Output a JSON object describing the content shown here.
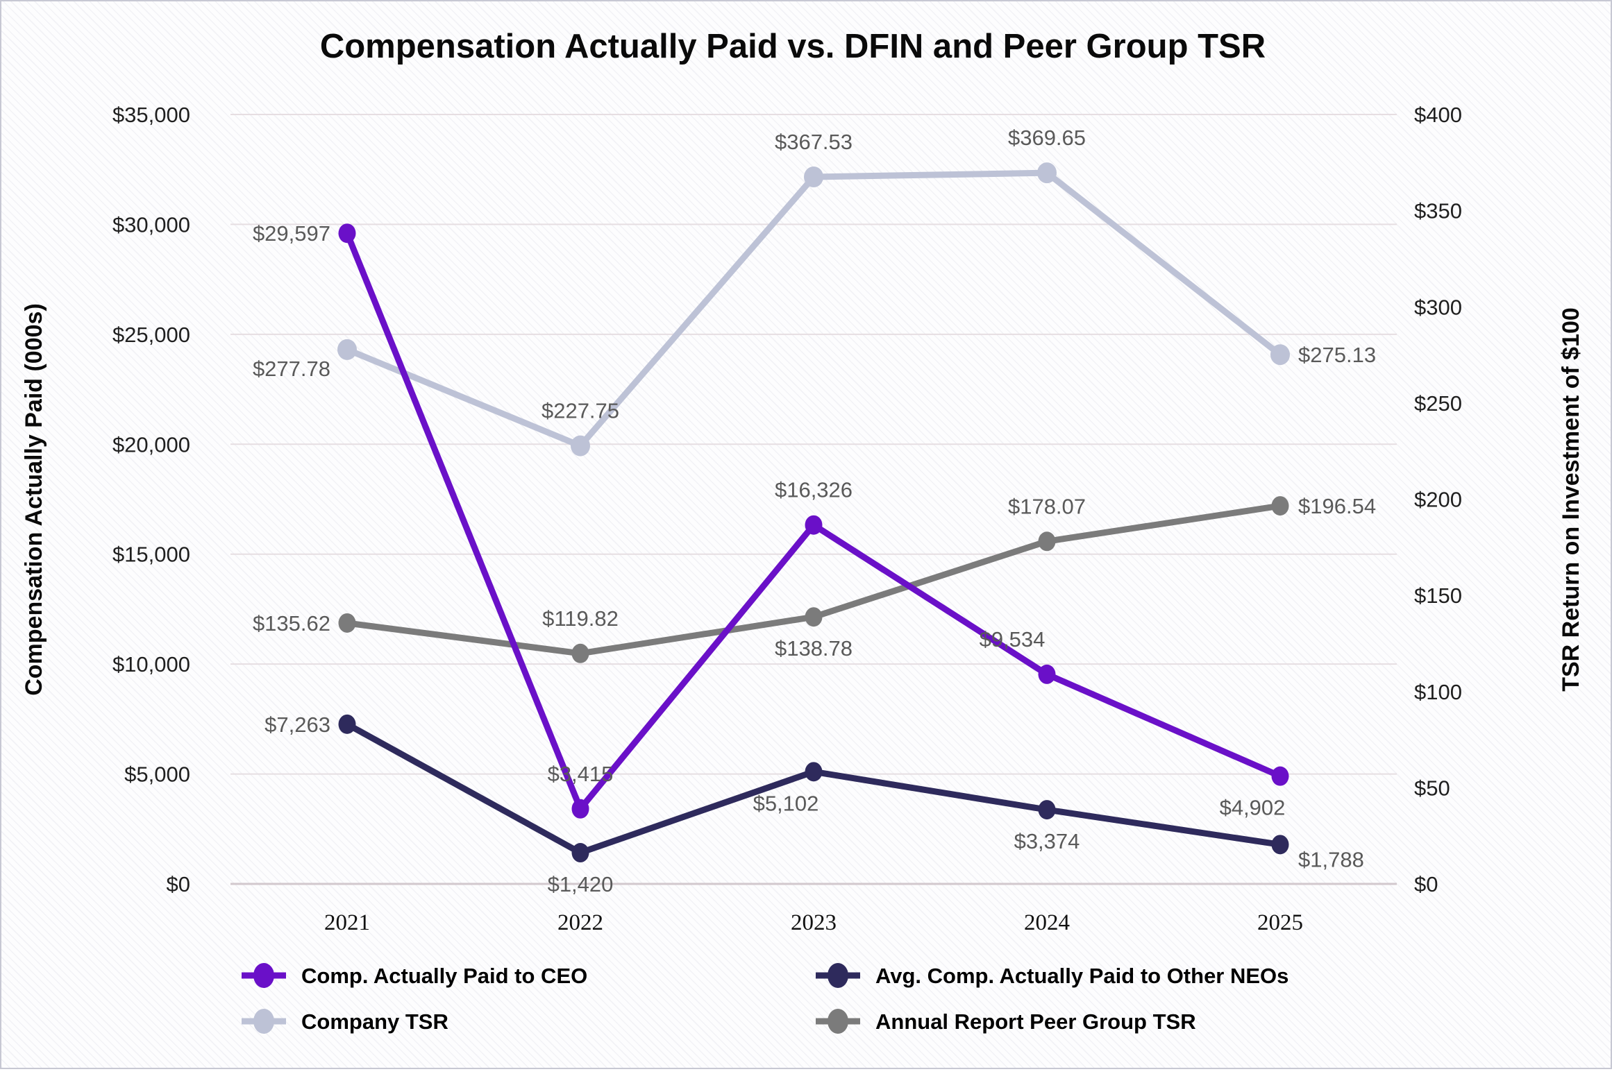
{
  "title": "Compensation Actually Paid vs. DFIN and Peer Group TSR",
  "chart_data": {
    "type": "line",
    "categories": [
      "2021",
      "2022",
      "2023",
      "2024",
      "2025"
    ],
    "series": [
      {
        "id": "ceo",
        "name": "Comp. Actually Paid to CEO",
        "axis": "left",
        "color": "#6a10c8",
        "values": [
          29597,
          3415,
          16326,
          9534,
          4902
        ],
        "point_labels": [
          "$29,597",
          "$3,415",
          "$16,326",
          "$9,534",
          "$4,902"
        ],
        "label_pos": [
          "left",
          "above",
          "above",
          "above-left",
          "below-left"
        ]
      },
      {
        "id": "neo",
        "name": "Avg. Comp. Actually Paid to Other NEOs",
        "axis": "left",
        "color": "#2e2a5c",
        "values": [
          7263,
          1420,
          5102,
          3374,
          1788
        ],
        "point_labels": [
          "$7,263",
          "$1,420",
          "$5,102",
          "$3,374",
          "$1,788"
        ],
        "label_pos": [
          "left",
          "below",
          "below-left",
          "below",
          "right-low"
        ]
      },
      {
        "id": "company-tsr",
        "name": "Company TSR",
        "axis": "right",
        "color": "#bdc2d6",
        "values": [
          277.78,
          227.75,
          367.53,
          369.65,
          275.13
        ],
        "point_labels": [
          "$277.78",
          "$227.75",
          "$367.53",
          "$369.65",
          "$275.13"
        ],
        "label_pos": [
          "left-low",
          "above",
          "above",
          "above",
          "right"
        ]
      },
      {
        "id": "peer-tsr",
        "name": "Annual Report Peer Group TSR",
        "axis": "right",
        "color": "#7b7b7b",
        "values": [
          135.62,
          119.82,
          138.78,
          178.07,
          196.54
        ],
        "point_labels": [
          "$135.62",
          "$119.82",
          "$138.78",
          "$178.07",
          "$196.54"
        ],
        "label_pos": [
          "left",
          "above",
          "below",
          "above",
          "right"
        ]
      }
    ],
    "left_axis": {
      "title": "Compensation Actually Paid (000s)",
      "range": [
        0,
        35000
      ],
      "step": 5000,
      "tick_labels": [
        "$0",
        "$5,000",
        "$10,000",
        "$15,000",
        "$20,000",
        "$25,000",
        "$30,000",
        "$35,000"
      ]
    },
    "right_axis": {
      "title": "TSR Return on Investment of $100",
      "range": [
        0,
        400
      ],
      "step": 50,
      "tick_labels": [
        "$0",
        "$50",
        "$100",
        "$150",
        "$200",
        "$250",
        "$300",
        "$350",
        "$400"
      ]
    },
    "grid": true,
    "legend_position": "bottom",
    "label_color": "#595959",
    "grid_color": "#e6dee2",
    "baseline_color": "#d2c8cd"
  }
}
